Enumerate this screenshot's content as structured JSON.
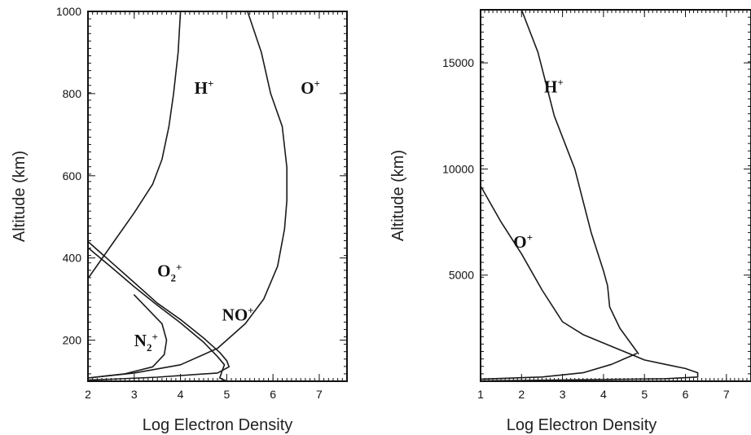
{
  "chart_data": [
    {
      "type": "line",
      "xlabel": "Log Electron Density",
      "ylabel": "Altitude (km)",
      "xlim": [
        2,
        7.6
      ],
      "ylim": [
        100,
        1000
      ],
      "x_ticks": [
        2,
        3,
        4,
        5,
        6,
        7
      ],
      "y_ticks": [
        200,
        400,
        600,
        800,
        1000
      ],
      "series": [
        {
          "name": "H+",
          "label_base": "H",
          "label_sup": "+",
          "label_sub": "",
          "label_at": [
            4.3,
            800
          ],
          "points": [
            [
              2.0,
              350
            ],
            [
              2.5,
              430
            ],
            [
              3.0,
              510
            ],
            [
              3.4,
              580
            ],
            [
              3.6,
              640
            ],
            [
              3.75,
              720
            ],
            [
              3.85,
              800
            ],
            [
              3.95,
              900
            ],
            [
              4.0,
              1000
            ]
          ]
        },
        {
          "name": "O+",
          "label_base": "O",
          "label_sup": "+",
          "label_sub": "",
          "label_at": [
            6.6,
            800
          ],
          "points": [
            [
              2.0,
              108
            ],
            [
              3.0,
              120
            ],
            [
              4.0,
              140
            ],
            [
              4.8,
              180
            ],
            [
              5.4,
              240
            ],
            [
              5.8,
              300
            ],
            [
              6.1,
              380
            ],
            [
              6.25,
              470
            ],
            [
              6.3,
              540
            ],
            [
              6.3,
              620
            ],
            [
              6.2,
              720
            ],
            [
              5.95,
              800
            ],
            [
              5.75,
              900
            ],
            [
              5.45,
              1000
            ]
          ]
        },
        {
          "name": "O2+",
          "label_base": "O",
          "label_sup": "+",
          "label_sub": "2",
          "label_at": [
            3.5,
            355
          ],
          "points": [
            [
              2.0,
              440
            ],
            [
              2.5,
              390
            ],
            [
              3.0,
              340
            ],
            [
              3.5,
              290
            ],
            [
              4.0,
              250
            ],
            [
              4.5,
              205
            ],
            [
              4.85,
              170
            ],
            [
              5.0,
              150
            ],
            [
              5.05,
              135
            ],
            [
              4.8,
              120
            ],
            [
              3.5,
              110
            ],
            [
              2.5,
              105
            ],
            [
              2.0,
              103
            ]
          ]
        },
        {
          "name": "NO+",
          "label_base": "NO",
          "label_sup": "+",
          "label_sub": "",
          "label_at": [
            4.9,
            248
          ],
          "points": [
            [
              2.0,
              425
            ],
            [
              2.5,
              378
            ],
            [
              3.0,
              330
            ],
            [
              3.5,
              285
            ],
            [
              4.0,
              242
            ],
            [
              4.5,
              195
            ],
            [
              4.8,
              160
            ],
            [
              4.95,
              140
            ],
            [
              4.9,
              125
            ],
            [
              4.85,
              108
            ],
            [
              5.0,
              100
            ],
            [
              5.2,
              100
            ]
          ]
        },
        {
          "name": "N2+",
          "label_base": "N",
          "label_sup": "+",
          "label_sub": "2",
          "label_at": [
            3.0,
            185
          ],
          "points": [
            [
              2.0,
              108
            ],
            [
              2.8,
              118
            ],
            [
              3.4,
              135
            ],
            [
              3.65,
              165
            ],
            [
              3.7,
              200
            ],
            [
              3.6,
              240
            ],
            [
              3.3,
              275
            ],
            [
              3.0,
              310
            ]
          ]
        }
      ]
    },
    {
      "type": "line",
      "xlabel": "Log Electron Density",
      "ylabel": "Altitude (km)",
      "xlim": [
        1,
        7.6
      ],
      "ylim": [
        0,
        17500
      ],
      "x_ticks": [
        1,
        2,
        3,
        4,
        5,
        6,
        7
      ],
      "y_ticks": [
        5000,
        10000,
        15000
      ],
      "series": [
        {
          "name": "H+",
          "label_base": "H",
          "label_sup": "+",
          "label_sub": "",
          "label_at": [
            2.55,
            13600
          ],
          "points": [
            [
              2.0,
              17500
            ],
            [
              2.4,
              15500
            ],
            [
              2.8,
              12500
            ],
            [
              3.3,
              10000
            ],
            [
              3.7,
              7000
            ],
            [
              4.0,
              5200
            ],
            [
              4.1,
              4500
            ],
            [
              4.15,
              3500
            ],
            [
              4.4,
              2500
            ],
            [
              4.85,
              1300
            ]
          ]
        },
        {
          "name": "O+",
          "label_base": "O",
          "label_sup": "+",
          "label_sub": "",
          "label_at": [
            1.8,
            6300
          ],
          "points": [
            [
              1.0,
              9200
            ],
            [
              1.5,
              7500
            ],
            [
              2.0,
              6000
            ],
            [
              2.5,
              4300
            ],
            [
              3.0,
              2800
            ],
            [
              3.5,
              2200
            ],
            [
              4.0,
              1800
            ],
            [
              4.5,
              1400
            ],
            [
              5.0,
              1000
            ],
            [
              5.5,
              800
            ],
            [
              6.0,
              600
            ],
            [
              6.3,
              400
            ],
            [
              6.3,
              200
            ],
            [
              5.5,
              120
            ],
            [
              4.0,
              80
            ],
            [
              3.0,
              60
            ],
            [
              2.0,
              40
            ],
            [
              1.0,
              20
            ]
          ]
        },
        {
          "name": "",
          "label_base": "",
          "label_sup": "",
          "label_sub": "",
          "label_at": null,
          "points": [
            [
              1.0,
              100
            ],
            [
              2.5,
              200
            ],
            [
              3.5,
              400
            ],
            [
              4.2,
              800
            ],
            [
              4.8,
              1300
            ]
          ]
        }
      ]
    }
  ]
}
